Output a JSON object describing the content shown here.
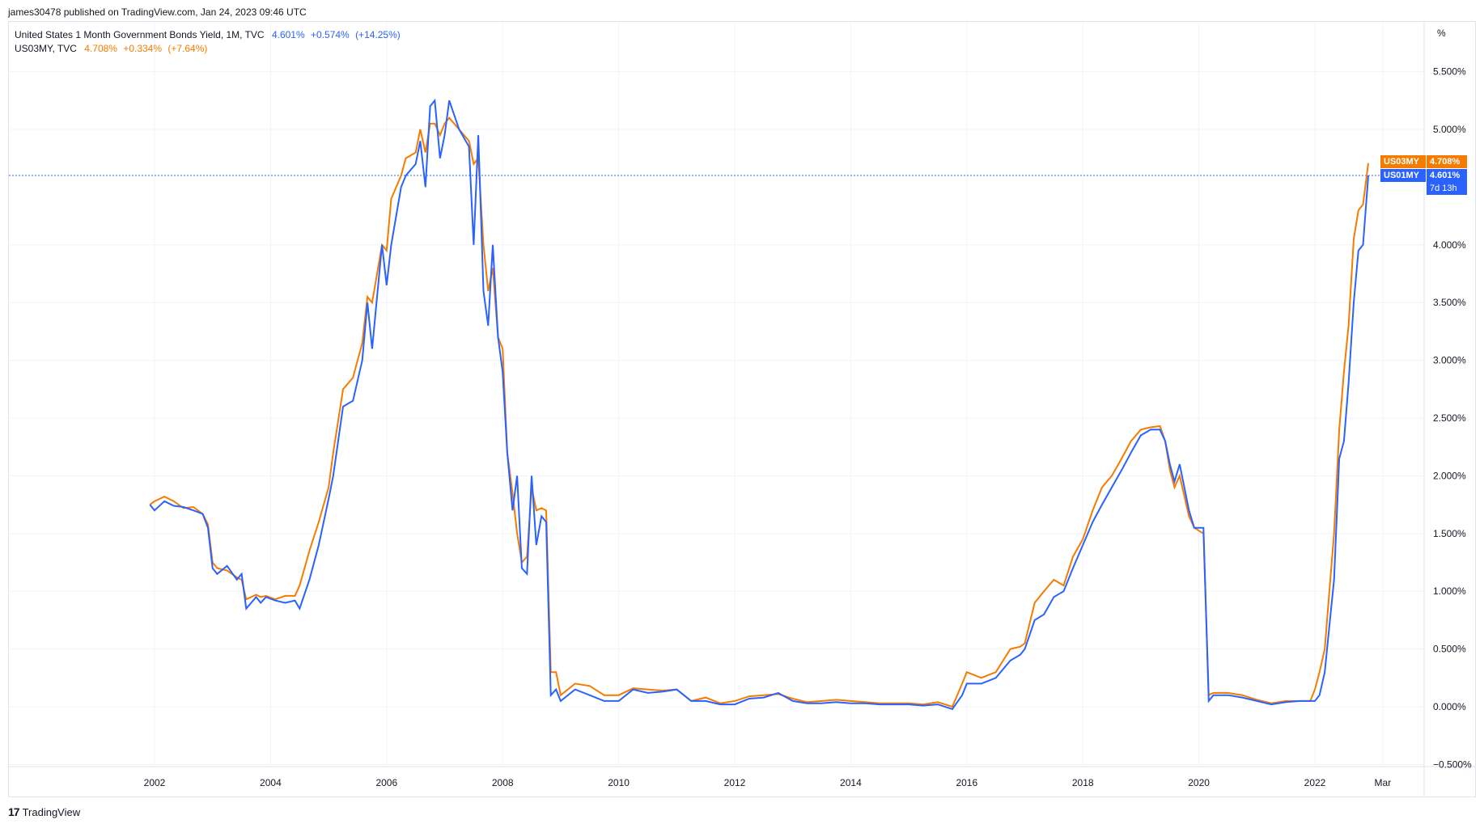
{
  "header": {
    "published": "james30478 published on TradingView.com, Jan 24, 2023 09:46 UTC"
  },
  "legend": {
    "s1_name": "United States 1 Month Government Bonds Yield, 1M, TVC",
    "s1_last": "4.601%",
    "s1_change": "+0.574%",
    "s1_pct": "(+14.25%)",
    "s2_name": "US03MY, TVC",
    "s2_last": "4.708%",
    "s2_change": "+0.334%",
    "s2_pct": "(+7.64%)"
  },
  "badges": {
    "s2_ticker": "US03MY",
    "s2_value": "4.708%",
    "s1_ticker": "US01MY",
    "s1_value": "4.601%",
    "countdown": "7d 13h"
  },
  "footer": {
    "brand": "TradingView",
    "logo": "17"
  },
  "colors": {
    "us01my": "#2962ff",
    "us03my": "#f57c00",
    "grid": "#f0f3fa",
    "axis": "#131722"
  },
  "chart_data": {
    "type": "line",
    "yunit": "%",
    "ylim": [
      -0.5,
      5.5
    ],
    "yticks": [
      "5.500%",
      "5.000%",
      "4.000%",
      "3.500%",
      "3.000%",
      "2.500%",
      "2.000%",
      "1.500%",
      "1.000%",
      "0.500%",
      "0.000%",
      "−0.500%"
    ],
    "ytick_values": [
      5.5,
      5.0,
      4.0,
      3.5,
      3.0,
      2.5,
      2.0,
      1.5,
      1.0,
      0.5,
      0.0,
      -0.5
    ],
    "xticks": [
      "2002",
      "2004",
      "2006",
      "2008",
      "2010",
      "2012",
      "2014",
      "2016",
      "2018",
      "2020",
      "2022",
      "Mar"
    ],
    "xtick_values": [
      2002,
      2004,
      2006,
      2008,
      2010,
      2012,
      2014,
      2016,
      2018,
      2020,
      2022,
      2023.17
    ],
    "xlim": [
      1999.5,
      2023.5
    ],
    "last_price_line": 4.601,
    "grid": true,
    "series": [
      {
        "name": "US01MY",
        "color": "#2962ff",
        "points": [
          [
            2001.92,
            1.75
          ],
          [
            2002.0,
            1.7
          ],
          [
            2002.17,
            1.78
          ],
          [
            2002.33,
            1.74
          ],
          [
            2002.5,
            1.73
          ],
          [
            2002.67,
            1.7
          ],
          [
            2002.83,
            1.67
          ],
          [
            2002.92,
            1.55
          ],
          [
            2003.0,
            1.2
          ],
          [
            2003.08,
            1.15
          ],
          [
            2003.25,
            1.22
          ],
          [
            2003.42,
            1.1
          ],
          [
            2003.5,
            1.15
          ],
          [
            2003.58,
            0.85
          ],
          [
            2003.75,
            0.95
          ],
          [
            2003.83,
            0.9
          ],
          [
            2003.92,
            0.95
          ],
          [
            2004.08,
            0.92
          ],
          [
            2004.25,
            0.9
          ],
          [
            2004.42,
            0.92
          ],
          [
            2004.5,
            0.85
          ],
          [
            2004.67,
            1.1
          ],
          [
            2004.83,
            1.4
          ],
          [
            2005.0,
            1.8
          ],
          [
            2005.08,
            2.0
          ],
          [
            2005.25,
            2.6
          ],
          [
            2005.42,
            2.65
          ],
          [
            2005.58,
            3.0
          ],
          [
            2005.67,
            3.5
          ],
          [
            2005.75,
            3.1
          ],
          [
            2005.92,
            4.0
          ],
          [
            2006.0,
            3.65
          ],
          [
            2006.08,
            4.0
          ],
          [
            2006.25,
            4.5
          ],
          [
            2006.33,
            4.6
          ],
          [
            2006.5,
            4.7
          ],
          [
            2006.58,
            4.9
          ],
          [
            2006.67,
            4.5
          ],
          [
            2006.75,
            5.2
          ],
          [
            2006.83,
            5.25
          ],
          [
            2006.92,
            4.75
          ],
          [
            2007.0,
            4.95
          ],
          [
            2007.08,
            5.25
          ],
          [
            2007.25,
            5.0
          ],
          [
            2007.42,
            4.85
          ],
          [
            2007.5,
            4.0
          ],
          [
            2007.58,
            4.95
          ],
          [
            2007.67,
            3.6
          ],
          [
            2007.75,
            3.3
          ],
          [
            2007.83,
            4.0
          ],
          [
            2007.92,
            3.2
          ],
          [
            2008.0,
            2.9
          ],
          [
            2008.08,
            2.2
          ],
          [
            2008.17,
            1.7
          ],
          [
            2008.25,
            2.0
          ],
          [
            2008.33,
            1.2
          ],
          [
            2008.42,
            1.15
          ],
          [
            2008.5,
            2.0
          ],
          [
            2008.58,
            1.4
          ],
          [
            2008.67,
            1.65
          ],
          [
            2008.75,
            1.6
          ],
          [
            2008.83,
            0.1
          ],
          [
            2008.92,
            0.15
          ],
          [
            2009.0,
            0.05
          ],
          [
            2009.25,
            0.15
          ],
          [
            2009.5,
            0.1
          ],
          [
            2009.75,
            0.05
          ],
          [
            2010.0,
            0.05
          ],
          [
            2010.25,
            0.15
          ],
          [
            2010.5,
            0.12
          ],
          [
            2010.75,
            0.13
          ],
          [
            2011.0,
            0.15
          ],
          [
            2011.25,
            0.05
          ],
          [
            2011.5,
            0.05
          ],
          [
            2011.75,
            0.02
          ],
          [
            2012.0,
            0.02
          ],
          [
            2012.25,
            0.07
          ],
          [
            2012.5,
            0.08
          ],
          [
            2012.75,
            0.12
          ],
          [
            2013.0,
            0.05
          ],
          [
            2013.25,
            0.03
          ],
          [
            2013.5,
            0.03
          ],
          [
            2013.75,
            0.04
          ],
          [
            2014.0,
            0.03
          ],
          [
            2014.25,
            0.03
          ],
          [
            2014.5,
            0.02
          ],
          [
            2014.75,
            0.02
          ],
          [
            2015.0,
            0.02
          ],
          [
            2015.25,
            0.01
          ],
          [
            2015.5,
            0.02
          ],
          [
            2015.75,
            -0.02
          ],
          [
            2015.92,
            0.1
          ],
          [
            2016.0,
            0.2
          ],
          [
            2016.25,
            0.2
          ],
          [
            2016.5,
            0.25
          ],
          [
            2016.75,
            0.4
          ],
          [
            2016.92,
            0.45
          ],
          [
            2017.0,
            0.5
          ],
          [
            2017.17,
            0.75
          ],
          [
            2017.33,
            0.8
          ],
          [
            2017.5,
            0.95
          ],
          [
            2017.67,
            1.0
          ],
          [
            2017.83,
            1.2
          ],
          [
            2018.0,
            1.4
          ],
          [
            2018.17,
            1.6
          ],
          [
            2018.33,
            1.75
          ],
          [
            2018.5,
            1.9
          ],
          [
            2018.67,
            2.05
          ],
          [
            2018.83,
            2.2
          ],
          [
            2019.0,
            2.35
          ],
          [
            2019.17,
            2.4
          ],
          [
            2019.33,
            2.4
          ],
          [
            2019.42,
            2.3
          ],
          [
            2019.5,
            2.1
          ],
          [
            2019.58,
            1.95
          ],
          [
            2019.67,
            2.1
          ],
          [
            2019.83,
            1.7
          ],
          [
            2019.92,
            1.55
          ],
          [
            2020.08,
            1.55
          ],
          [
            2020.17,
            0.05
          ],
          [
            2020.25,
            0.1
          ],
          [
            2020.5,
            0.1
          ],
          [
            2020.75,
            0.08
          ],
          [
            2021.0,
            0.05
          ],
          [
            2021.25,
            0.02
          ],
          [
            2021.5,
            0.04
          ],
          [
            2021.75,
            0.05
          ],
          [
            2021.92,
            0.05
          ],
          [
            2022.0,
            0.05
          ],
          [
            2022.08,
            0.1
          ],
          [
            2022.17,
            0.3
          ],
          [
            2022.25,
            0.7
          ],
          [
            2022.33,
            1.1
          ],
          [
            2022.42,
            2.15
          ],
          [
            2022.5,
            2.3
          ],
          [
            2022.58,
            2.8
          ],
          [
            2022.67,
            3.5
          ],
          [
            2022.75,
            3.95
          ],
          [
            2022.83,
            4.0
          ],
          [
            2022.92,
            4.601
          ]
        ]
      },
      {
        "name": "US03MY",
        "color": "#f57c00",
        "points": [
          [
            2001.92,
            1.75
          ],
          [
            2002.0,
            1.78
          ],
          [
            2002.17,
            1.82
          ],
          [
            2002.33,
            1.78
          ],
          [
            2002.5,
            1.72
          ],
          [
            2002.67,
            1.73
          ],
          [
            2002.83,
            1.67
          ],
          [
            2002.92,
            1.58
          ],
          [
            2003.0,
            1.25
          ],
          [
            2003.08,
            1.2
          ],
          [
            2003.25,
            1.18
          ],
          [
            2003.42,
            1.12
          ],
          [
            2003.5,
            1.1
          ],
          [
            2003.58,
            0.93
          ],
          [
            2003.75,
            0.97
          ],
          [
            2003.83,
            0.95
          ],
          [
            2003.92,
            0.96
          ],
          [
            2004.08,
            0.93
          ],
          [
            2004.25,
            0.96
          ],
          [
            2004.42,
            0.96
          ],
          [
            2004.5,
            1.05
          ],
          [
            2004.67,
            1.35
          ],
          [
            2004.83,
            1.6
          ],
          [
            2005.0,
            1.9
          ],
          [
            2005.08,
            2.2
          ],
          [
            2005.25,
            2.75
          ],
          [
            2005.42,
            2.85
          ],
          [
            2005.58,
            3.15
          ],
          [
            2005.67,
            3.55
          ],
          [
            2005.75,
            3.5
          ],
          [
            2005.92,
            4.0
          ],
          [
            2006.0,
            3.95
          ],
          [
            2006.08,
            4.4
          ],
          [
            2006.25,
            4.6
          ],
          [
            2006.33,
            4.75
          ],
          [
            2006.5,
            4.8
          ],
          [
            2006.58,
            5.0
          ],
          [
            2006.67,
            4.8
          ],
          [
            2006.75,
            5.05
          ],
          [
            2006.83,
            5.05
          ],
          [
            2006.92,
            4.95
          ],
          [
            2007.0,
            5.05
          ],
          [
            2007.08,
            5.1
          ],
          [
            2007.25,
            5.0
          ],
          [
            2007.42,
            4.9
          ],
          [
            2007.5,
            4.7
          ],
          [
            2007.58,
            4.75
          ],
          [
            2007.67,
            4.0
          ],
          [
            2007.75,
            3.6
          ],
          [
            2007.83,
            3.8
          ],
          [
            2007.92,
            3.2
          ],
          [
            2008.0,
            3.1
          ],
          [
            2008.08,
            2.2
          ],
          [
            2008.17,
            1.85
          ],
          [
            2008.25,
            1.5
          ],
          [
            2008.33,
            1.25
          ],
          [
            2008.42,
            1.3
          ],
          [
            2008.5,
            1.9
          ],
          [
            2008.58,
            1.7
          ],
          [
            2008.67,
            1.72
          ],
          [
            2008.75,
            1.7
          ],
          [
            2008.83,
            0.3
          ],
          [
            2008.92,
            0.3
          ],
          [
            2009.0,
            0.1
          ],
          [
            2009.25,
            0.2
          ],
          [
            2009.5,
            0.18
          ],
          [
            2009.75,
            0.1
          ],
          [
            2010.0,
            0.1
          ],
          [
            2010.25,
            0.16
          ],
          [
            2010.5,
            0.15
          ],
          [
            2010.75,
            0.14
          ],
          [
            2011.0,
            0.15
          ],
          [
            2011.25,
            0.05
          ],
          [
            2011.5,
            0.08
          ],
          [
            2011.75,
            0.03
          ],
          [
            2012.0,
            0.05
          ],
          [
            2012.25,
            0.09
          ],
          [
            2012.5,
            0.1
          ],
          [
            2012.75,
            0.11
          ],
          [
            2013.0,
            0.07
          ],
          [
            2013.25,
            0.04
          ],
          [
            2013.5,
            0.05
          ],
          [
            2013.75,
            0.06
          ],
          [
            2014.0,
            0.05
          ],
          [
            2014.25,
            0.04
          ],
          [
            2014.5,
            0.03
          ],
          [
            2014.75,
            0.03
          ],
          [
            2015.0,
            0.03
          ],
          [
            2015.25,
            0.02
          ],
          [
            2015.5,
            0.04
          ],
          [
            2015.75,
            0.0
          ],
          [
            2015.92,
            0.2
          ],
          [
            2016.0,
            0.3
          ],
          [
            2016.25,
            0.25
          ],
          [
            2016.5,
            0.3
          ],
          [
            2016.75,
            0.5
          ],
          [
            2016.92,
            0.52
          ],
          [
            2017.0,
            0.55
          ],
          [
            2017.17,
            0.9
          ],
          [
            2017.33,
            1.0
          ],
          [
            2017.5,
            1.1
          ],
          [
            2017.67,
            1.05
          ],
          [
            2017.83,
            1.3
          ],
          [
            2018.0,
            1.45
          ],
          [
            2018.17,
            1.7
          ],
          [
            2018.33,
            1.9
          ],
          [
            2018.5,
            2.0
          ],
          [
            2018.67,
            2.15
          ],
          [
            2018.83,
            2.3
          ],
          [
            2019.0,
            2.4
          ],
          [
            2019.17,
            2.42
          ],
          [
            2019.33,
            2.43
          ],
          [
            2019.42,
            2.3
          ],
          [
            2019.5,
            2.05
          ],
          [
            2019.58,
            1.9
          ],
          [
            2019.67,
            2.0
          ],
          [
            2019.83,
            1.65
          ],
          [
            2019.92,
            1.55
          ],
          [
            2020.08,
            1.5
          ],
          [
            2020.17,
            0.1
          ],
          [
            2020.25,
            0.12
          ],
          [
            2020.5,
            0.12
          ],
          [
            2020.75,
            0.1
          ],
          [
            2021.0,
            0.06
          ],
          [
            2021.25,
            0.03
          ],
          [
            2021.5,
            0.05
          ],
          [
            2021.75,
            0.05
          ],
          [
            2021.92,
            0.05
          ],
          [
            2022.0,
            0.15
          ],
          [
            2022.08,
            0.3
          ],
          [
            2022.17,
            0.5
          ],
          [
            2022.25,
            1.0
          ],
          [
            2022.33,
            1.5
          ],
          [
            2022.42,
            2.4
          ],
          [
            2022.5,
            2.9
          ],
          [
            2022.58,
            3.3
          ],
          [
            2022.67,
            4.05
          ],
          [
            2022.75,
            4.3
          ],
          [
            2022.83,
            4.35
          ],
          [
            2022.92,
            4.708
          ]
        ]
      }
    ]
  }
}
